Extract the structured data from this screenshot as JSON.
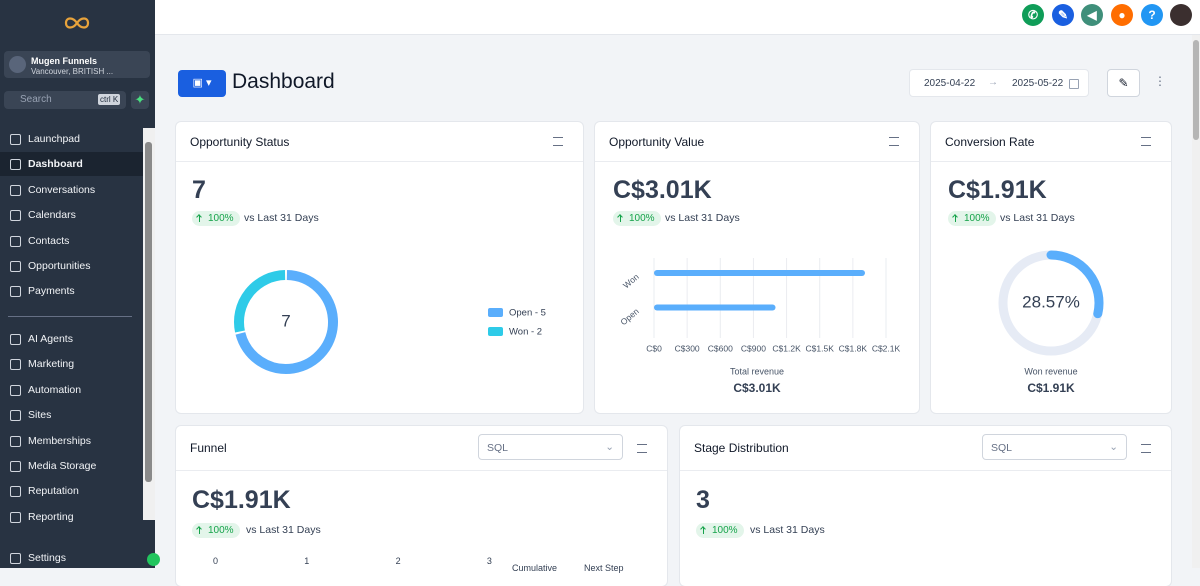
{
  "sidebar": {
    "account": {
      "name": "Mugen Funnels",
      "location": "Vancouver, BRITISH ..."
    },
    "search": {
      "placeholder": "Search",
      "shortcut": "ctrl K"
    },
    "nav": [
      "Launchpad",
      "Dashboard",
      "Conversations",
      "Calendars",
      "Contacts",
      "Opportunities",
      "Payments"
    ],
    "nav2": [
      "AI Agents",
      "Marketing",
      "Automation",
      "Sites",
      "Memberships",
      "Media Storage",
      "Reputation",
      "Reporting"
    ],
    "settings": "Settings"
  },
  "topbar": {
    "help": "?"
  },
  "header": {
    "title": "Dashboard",
    "date_from": "2025-04-22",
    "date_to": "2025-05-22"
  },
  "cards": {
    "opportunity_status": {
      "title": "Opportunity Status",
      "value": "7",
      "change": "100%",
      "period": "vs Last 31 Days"
    },
    "opportunity_value": {
      "title": "Opportunity Value",
      "value": "C$3.01K",
      "change": "100%",
      "period": "vs Last 31 Days"
    },
    "conversion_rate": {
      "title": "Conversion Rate",
      "value": "C$1.91K",
      "change": "100%",
      "period": "vs Last 31 Days"
    },
    "funnel": {
      "title": "Funnel",
      "filter": "SQL",
      "value": "C$1.91K",
      "change": "100%",
      "period": "vs Last 31 Days",
      "axis_ticks": [
        "0",
        "1",
        "2",
        "3"
      ],
      "columns": [
        "Cumulative",
        "Next Step"
      ]
    },
    "stage_distribution": {
      "title": "Stage Distribution",
      "filter": "SQL",
      "value": "3",
      "change": "100%",
      "period": "vs Last 31 Days"
    }
  },
  "chart_data": [
    {
      "type": "donut",
      "categories": [
        "Open",
        "Won"
      ],
      "values": [
        5,
        2
      ],
      "colors": [
        "#5aaefc",
        "#2ecbe8"
      ],
      "center_label": "7",
      "legend_labels": [
        "Open - 5",
        "Won - 2"
      ]
    },
    {
      "type": "hbar",
      "categories": [
        "Won",
        "Open"
      ],
      "values": [
        1910,
        1100
      ],
      "color": "#5aaefc",
      "xlim": [
        0,
        2100
      ],
      "xticks": [
        {
          "value": 0,
          "label": "C$0"
        },
        {
          "value": 300,
          "label": "C$300"
        },
        {
          "value": 600,
          "label": "C$600"
        },
        {
          "value": 900,
          "label": "C$900"
        },
        {
          "value": 1200,
          "label": "C$1.2K"
        },
        {
          "value": 1500,
          "label": "C$1.5K"
        },
        {
          "value": 1800,
          "label": "C$1.8K"
        },
        {
          "value": 2100,
          "label": "C$2.1K"
        }
      ],
      "grid": true,
      "xlabel": "Total revenue",
      "total": "C$3.01K"
    },
    {
      "type": "ring",
      "values": [
        28.57
      ],
      "value_labels": [
        "28.57%"
      ],
      "ylim": [
        0,
        100
      ],
      "color": "#5aaefc",
      "track_color": "#e6ebf5",
      "caption": "Won revenue",
      "total": "C$1.91K"
    }
  ]
}
